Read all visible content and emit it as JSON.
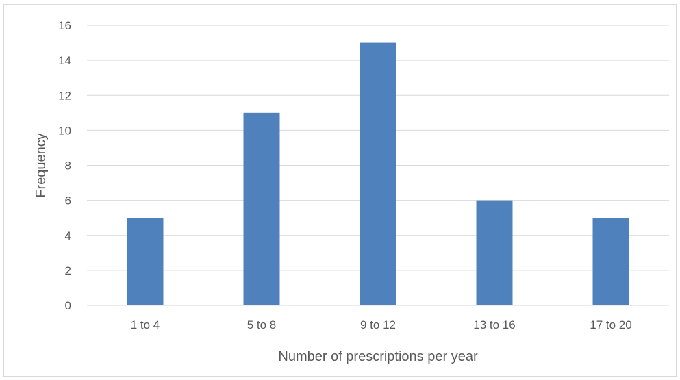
{
  "chart_data": {
    "type": "bar",
    "title": "",
    "xlabel": "Number of prescriptions per year",
    "ylabel": "Frequency",
    "categories": [
      "1 to 4",
      "5 to 8",
      "9 to 12",
      "13 to 16",
      "17 to 20"
    ],
    "values": [
      5,
      11,
      15,
      6,
      5
    ],
    "ylim": [
      0,
      16
    ],
    "yticks": [
      0,
      2,
      4,
      6,
      8,
      10,
      12,
      14,
      16
    ],
    "grid": true,
    "legend": "none",
    "colors": {
      "bar": "#4f81bd",
      "grid": "#d9d9d9",
      "text": "#595959",
      "axis": "#d9d9d9"
    }
  }
}
